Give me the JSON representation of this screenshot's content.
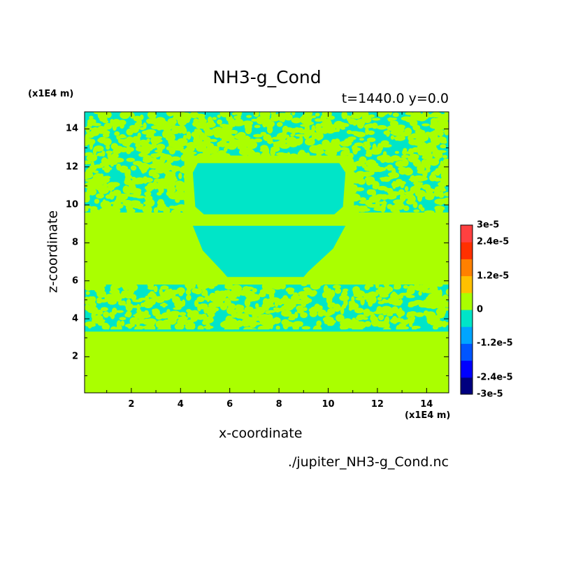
{
  "chart_data": {
    "type": "heatmap",
    "title": "NH3-g_Cond",
    "subtitle": "t=1440.0 y=0.0",
    "xlabel": "x-coordinate",
    "ylabel": "z-coordinate",
    "x_unit": "(x1E4 m)",
    "y_unit": "(x1E4 m)",
    "source": "./jupiter_NH3-g_Cond.nc",
    "xlim": [
      0.1,
      14.9
    ],
    "ylim": [
      0.1,
      14.9
    ],
    "x_ticks": [
      2,
      4,
      6,
      8,
      10,
      12,
      14
    ],
    "y_ticks": [
      2,
      4,
      6,
      8,
      10,
      12,
      14
    ],
    "colorbar": {
      "min": -3e-05,
      "max": 3e-05,
      "tick_labels": [
        "3e-5",
        "2.4e-5",
        "1.2e-5",
        "0",
        "-1.2e-5",
        "-2.4e-5",
        "-3e-5"
      ],
      "tick_values": [
        3e-05,
        2.4e-05,
        1.2e-05,
        0,
        -1.2e-05,
        -2.4e-05,
        -3e-05
      ],
      "colors": [
        "#00007f",
        "#0000ff",
        "#0055ff",
        "#00a5ff",
        "#00e5c8",
        "#aaff00",
        "#ffc000",
        "#ff8000",
        "#ff3000",
        "#ff4040"
      ]
    },
    "field_colors": {
      "zero": "#aaff00",
      "negative": "#00e5c8"
    },
    "regions": {
      "upper_mottled_z": [
        9.6,
        14.9
      ],
      "uniform_band_z": [
        5.8,
        9.6
      ],
      "lower_mottled_z": [
        3.4,
        5.8
      ],
      "bottom_uniform_z": [
        0.1,
        3.4
      ],
      "cloud_upper": {
        "x": [
          4.5,
          10.7
        ],
        "z": [
          9.5,
          12.2
        ]
      },
      "cloud_lower": {
        "x": [
          4.5,
          10.7
        ],
        "z": [
          6.2,
          8.9
        ]
      }
    }
  }
}
